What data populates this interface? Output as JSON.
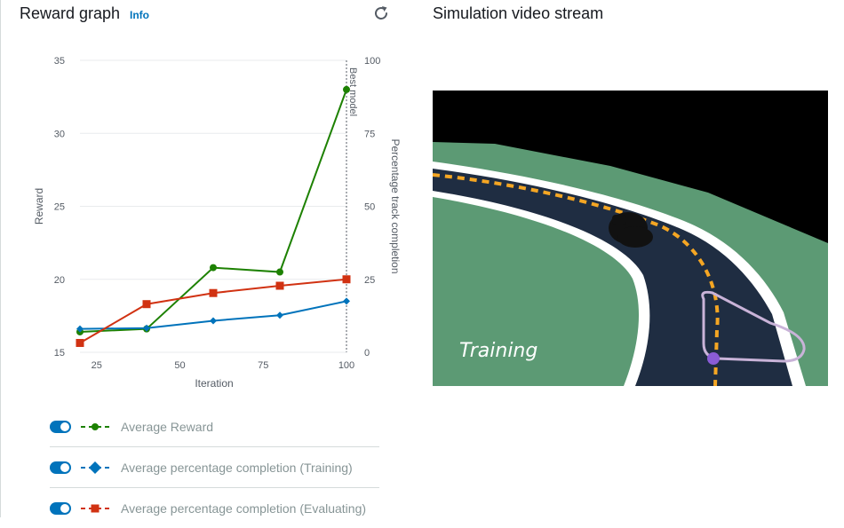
{
  "reward_panel": {
    "title": "Reward graph",
    "info_label": "Info",
    "refresh_icon": "refresh-icon"
  },
  "video_panel": {
    "title": "Simulation video stream",
    "overlay_text": "Training"
  },
  "chart_data": {
    "type": "line",
    "xlabel": "Iteration",
    "ylabel_left": "Reward",
    "ylabel_right": "Percentage track completion",
    "xlim": [
      20,
      100
    ],
    "xticks": [
      25,
      50,
      75,
      100
    ],
    "ylim_left": [
      15,
      35
    ],
    "yticks_left": [
      15,
      20,
      25,
      30,
      35
    ],
    "ylim_right": [
      0,
      100
    ],
    "yticks_right": [
      0,
      25,
      50,
      75,
      100
    ],
    "grid": "horizontal",
    "annotation": {
      "x": 100,
      "label": "Best model"
    },
    "series": [
      {
        "name": "Average Reward",
        "axis": "left",
        "color": "#1d8102",
        "marker": "circle",
        "x": [
          20,
          40,
          60,
          80,
          100
        ],
        "y": [
          16.4,
          16.6,
          20.8,
          20.5,
          33.0
        ]
      },
      {
        "name": "Average percentage completion (Training)",
        "axis": "right",
        "color": "#0073bb",
        "marker": "diamond",
        "x": [
          20,
          40,
          60,
          80,
          100
        ],
        "y": [
          8.0,
          8.3,
          10.8,
          12.7,
          17.5
        ]
      },
      {
        "name": "Average percentage completion (Evaluating)",
        "axis": "right",
        "color": "#d13212",
        "marker": "square",
        "x": [
          20,
          40,
          60,
          80,
          100
        ],
        "y": [
          3.2,
          16.5,
          20.3,
          22.8,
          25.0
        ]
      }
    ]
  }
}
